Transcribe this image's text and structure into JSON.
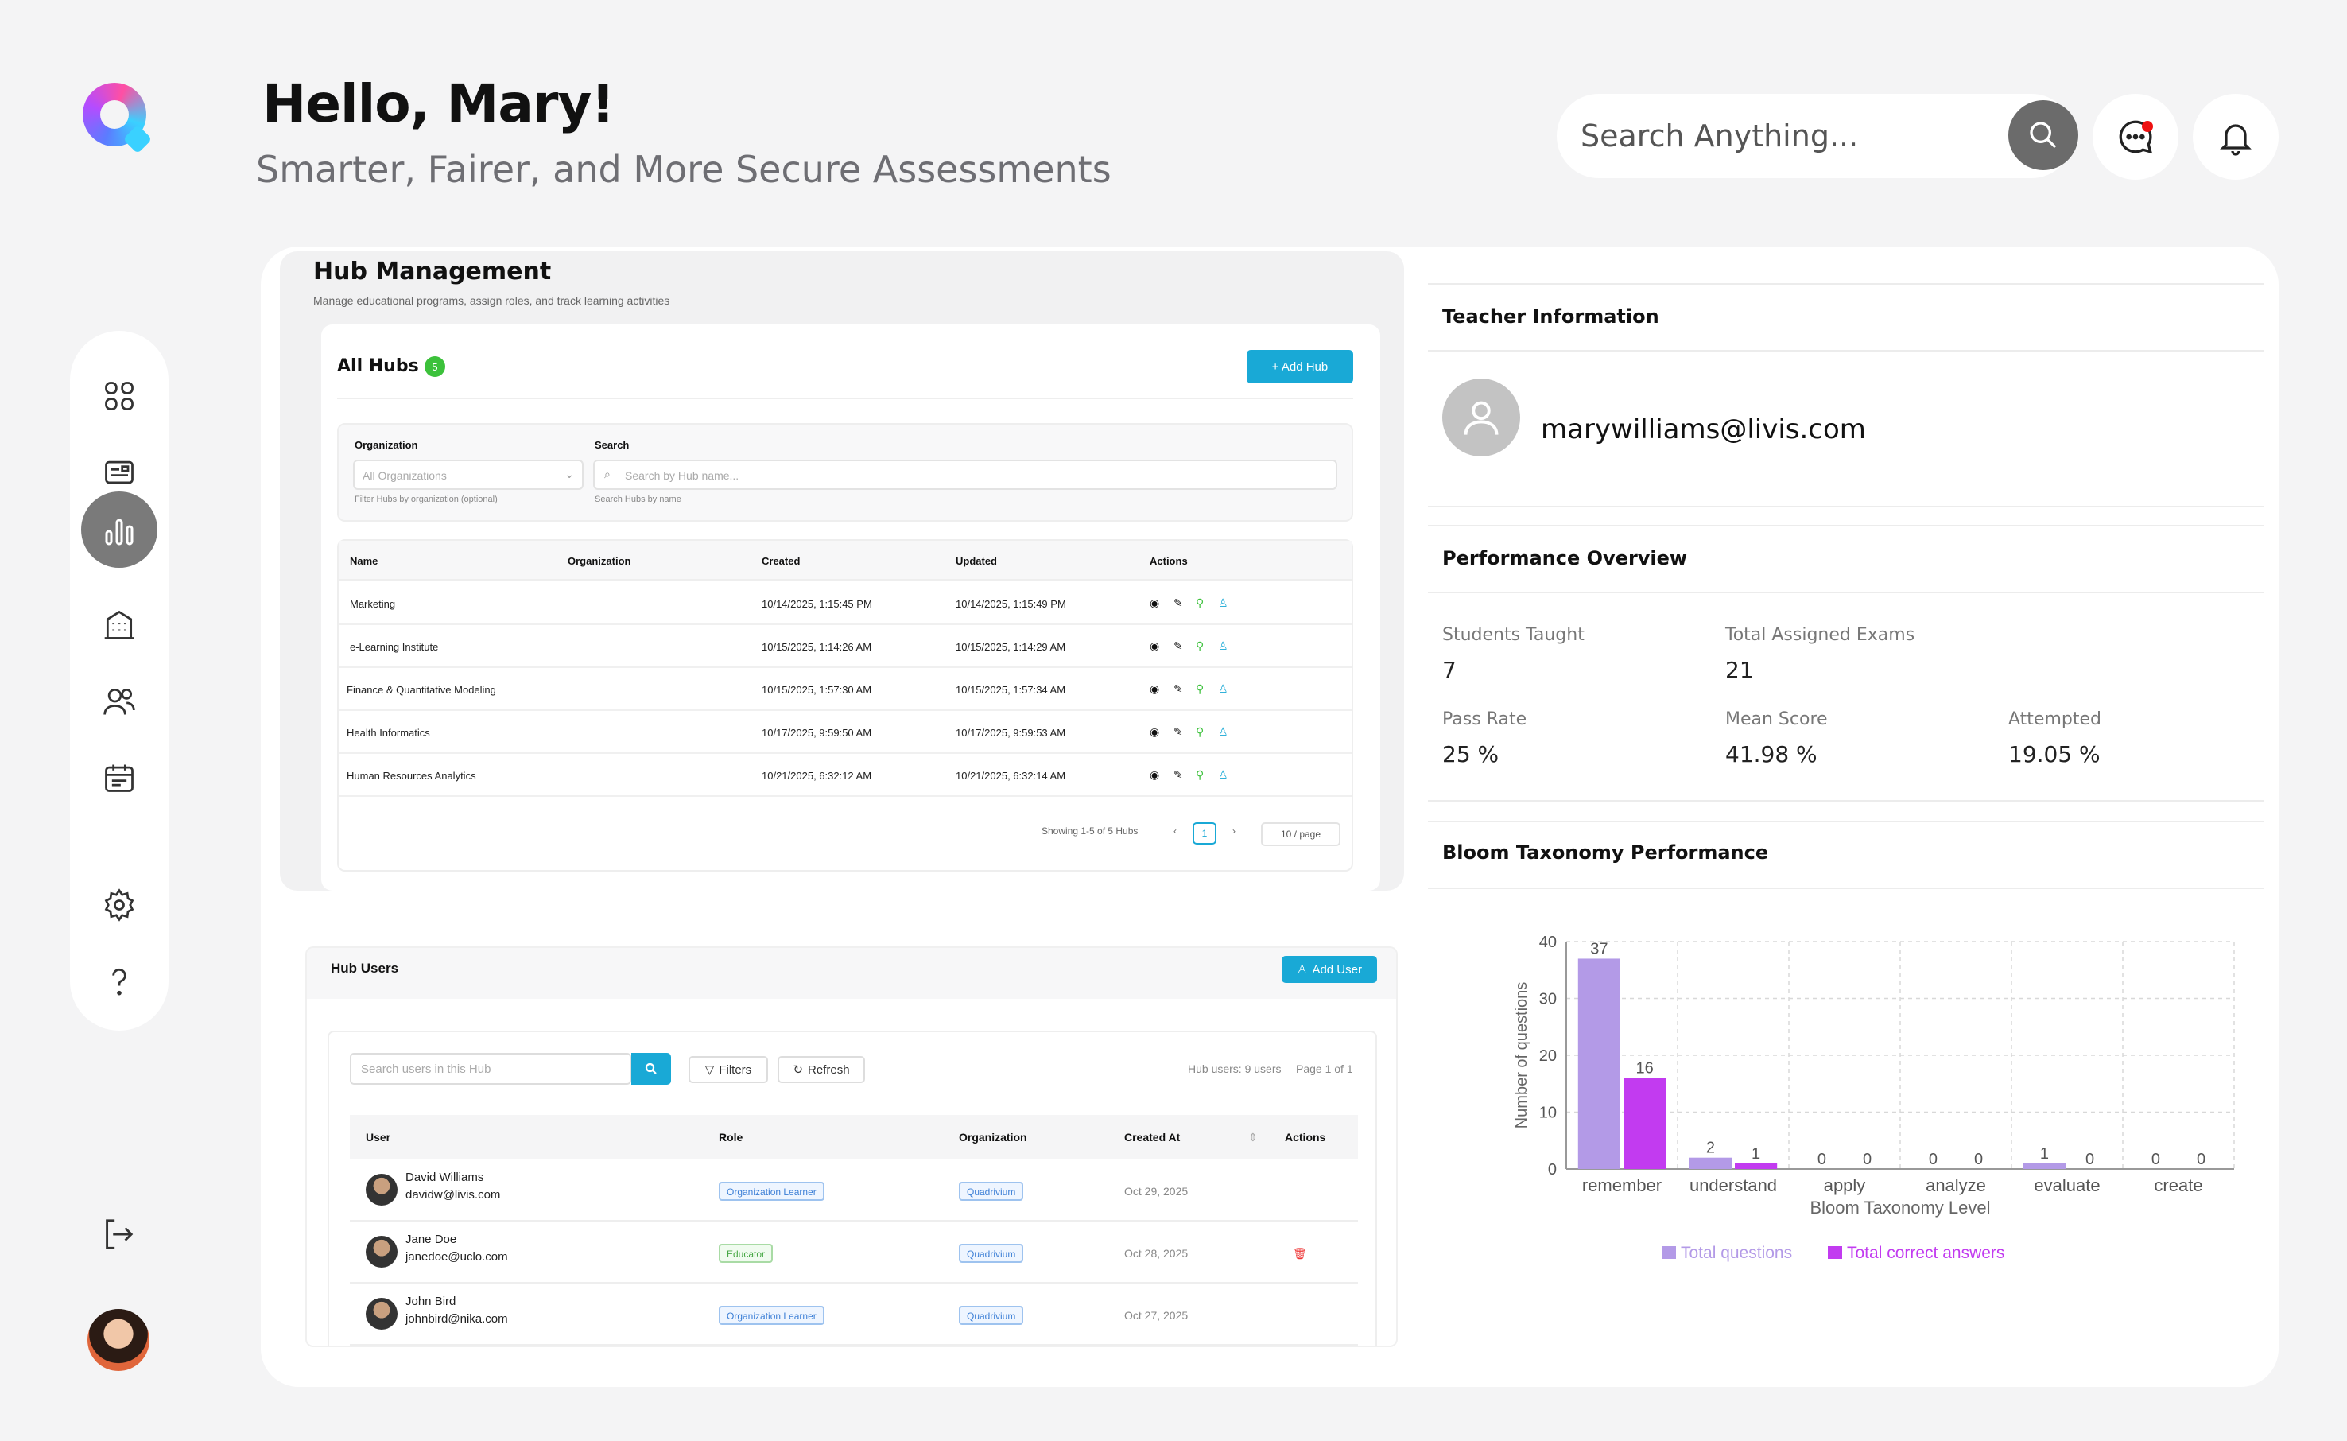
{
  "header": {
    "greeting": "Hello, Mary!",
    "subtitle": "Smarter, Fairer, and More Secure Assessments",
    "search_placeholder": "Search Anything..."
  },
  "icons": {
    "sidebar": [
      "dashboard-grid-icon",
      "id-card-icon",
      "analytics-icon",
      "building-icon",
      "users-icon",
      "calendar-icon",
      "gear-icon",
      "help-icon"
    ],
    "active": "analytics-icon"
  },
  "colors": {
    "accent": "#19a9d6",
    "nav_active": "#7a7a7a",
    "series_total": "#b39ae7",
    "series_correct": "#c23bf0"
  },
  "hub_management": {
    "title": "Hub Management",
    "description": "Manage educational programs, assign roles, and track learning activities",
    "all_hubs_label": "All Hubs",
    "hub_count": "5",
    "add_hub_label": "+ Add Hub",
    "org_filter_label": "Organization",
    "org_filter_value": "All Organizations",
    "org_filter_help": "Filter Hubs by organization (optional)",
    "search_label": "Search",
    "search_placeholder": "Search by Hub name...",
    "search_help": "Search Hubs by name",
    "columns": [
      "Name",
      "Organization",
      "Created",
      "Updated",
      "Actions"
    ],
    "rows": [
      {
        "name": "Marketing",
        "organization": "",
        "created": "10/14/2025, 1:15:45 PM",
        "updated": "10/14/2025, 1:15:49 PM"
      },
      {
        "name": "e-Learning Institute",
        "organization": "",
        "created": "10/15/2025, 1:14:26 AM",
        "updated": "10/15/2025, 1:14:29 AM"
      },
      {
        "name": "Finance & Quantitative Modeling",
        "organization": "",
        "created": "10/15/2025, 1:57:30 AM",
        "updated": "10/15/2025, 1:57:34 AM"
      },
      {
        "name": "Health Informatics",
        "organization": "",
        "created": "10/17/2025, 9:59:50 AM",
        "updated": "10/17/2025, 9:59:53 AM"
      },
      {
        "name": "Human Resources Analytics",
        "organization": "",
        "created": "10/21/2025, 6:32:12 AM",
        "updated": "10/21/2025, 6:32:14 AM"
      }
    ],
    "pagination_text": "Showing 1-5 of 5 Hubs",
    "current_page": "1",
    "page_size": "10 / page"
  },
  "hub_users": {
    "title": "Hub Users",
    "add_user_label": "Add User",
    "search_placeholder": "Search users in this Hub",
    "filters_label": "Filters",
    "refresh_label": "Refresh",
    "count_text": "Hub users: 9 users",
    "page_text": "Page 1 of 1",
    "columns": [
      "User",
      "Role",
      "Organization",
      "Created At",
      "Actions"
    ],
    "rows": [
      {
        "name": "David Williams",
        "email": "davidw@livis.com",
        "role": "Organization Learner",
        "organization": "Quadrivium",
        "created_at": "Oct 29, 2025"
      },
      {
        "name": "Jane Doe",
        "email": "janedoe@uclo.com",
        "role": "Educator",
        "organization": "Quadrivium",
        "created_at": "Oct 28, 2025"
      },
      {
        "name": "John Bird",
        "email": "johnbird@nika.com",
        "role": "Organization Learner",
        "organization": "Quadrivium",
        "created_at": "Oct 27, 2025"
      }
    ]
  },
  "teacher": {
    "title": "Teacher Information",
    "email": "marywilliams@livis.com"
  },
  "performance": {
    "title": "Performance Overview",
    "students_taught_label": "Students Taught",
    "students_taught": "7",
    "total_exams_label": "Total Assigned Exams",
    "total_exams": "21",
    "pass_rate_label": "Pass Rate",
    "pass_rate": "25 %",
    "mean_score_label": "Mean Score",
    "mean_score": "41.98 %",
    "attempted_label": "Attempted",
    "attempted": "19.05 %"
  },
  "bloom": {
    "title": "Bloom Taxonomy Performance"
  },
  "chart_data": {
    "type": "bar",
    "title": "",
    "xlabel": "Bloom Taxonomy Level",
    "ylabel": "Number of questions",
    "ylim": [
      0,
      40
    ],
    "yticks": [
      0,
      10,
      20,
      30,
      40
    ],
    "categories": [
      "remember",
      "understand",
      "apply",
      "analyze",
      "evaluate",
      "create"
    ],
    "series": [
      {
        "name": "Total questions",
        "values": [
          37,
          2,
          0,
          0,
          1,
          0
        ],
        "color": "#b39ae7"
      },
      {
        "name": "Total correct answers",
        "values": [
          16,
          1,
          0,
          0,
          0,
          0
        ],
        "color": "#c23bf0"
      }
    ],
    "grid": true,
    "legend": "bottom"
  }
}
